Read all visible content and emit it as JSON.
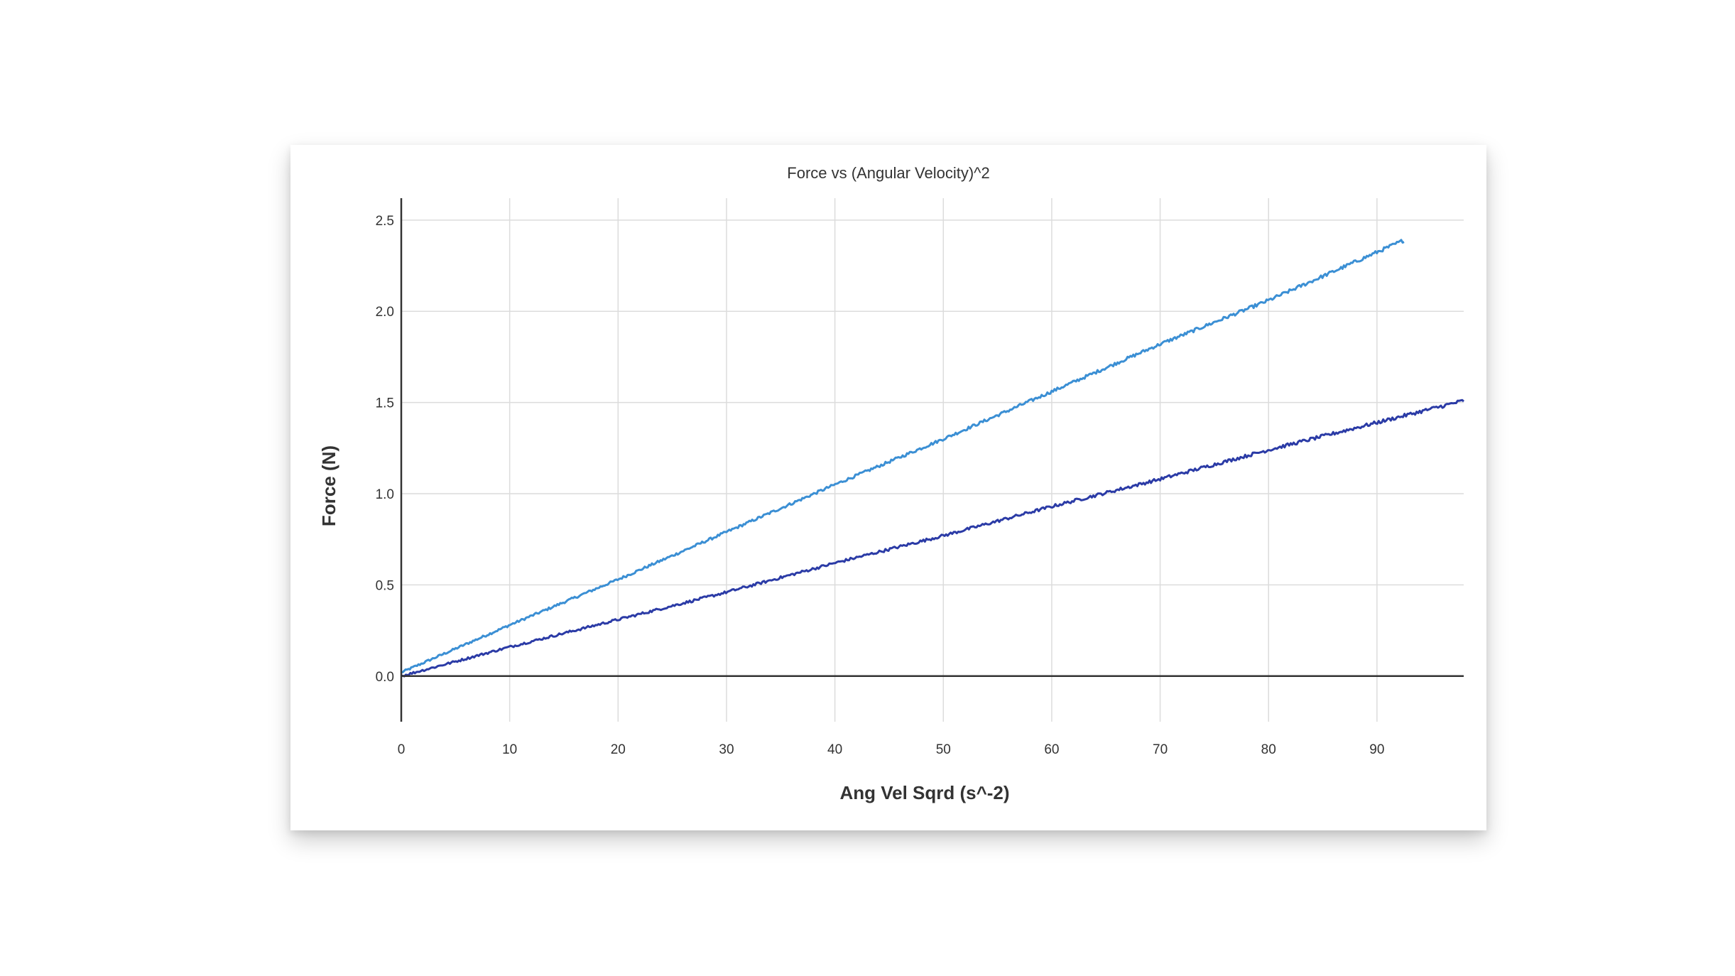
{
  "chart_data": {
    "type": "line",
    "title": "Force vs (Angular Velocity)^2",
    "xlabel": "Ang Vel Sqrd (s^-2)",
    "ylabel": "Force (N)",
    "xlim": [
      0,
      98
    ],
    "ylim": [
      -0.25,
      2.62
    ],
    "x_ticks": [
      0,
      10,
      20,
      30,
      40,
      50,
      60,
      70,
      80,
      90
    ],
    "x_tick_labels": [
      "0",
      "10",
      "20",
      "30",
      "40",
      "50",
      "60",
      "70",
      "80",
      "90"
    ],
    "y_ticks": [
      0.0,
      0.5,
      1.0,
      1.5,
      2.0,
      2.5
    ],
    "y_tick_labels": [
      "0.0",
      "0.5",
      "1.0",
      "1.5",
      "2.0",
      "2.5"
    ],
    "grid": true,
    "legend": "none",
    "series": [
      {
        "color": "#3b8fd4",
        "x": [
          0,
          10,
          20,
          30,
          40,
          50,
          60,
          70,
          80,
          92.5
        ],
        "y": [
          0.02,
          0.28,
          0.53,
          0.79,
          1.05,
          1.3,
          1.56,
          1.82,
          2.06,
          2.39
        ]
      },
      {
        "color": "#2b3ba6",
        "x": [
          0,
          10,
          20,
          30,
          40,
          50,
          60,
          70,
          80,
          98
        ],
        "y": [
          0.0,
          0.16,
          0.31,
          0.46,
          0.62,
          0.77,
          0.93,
          1.08,
          1.24,
          1.51
        ]
      }
    ]
  }
}
